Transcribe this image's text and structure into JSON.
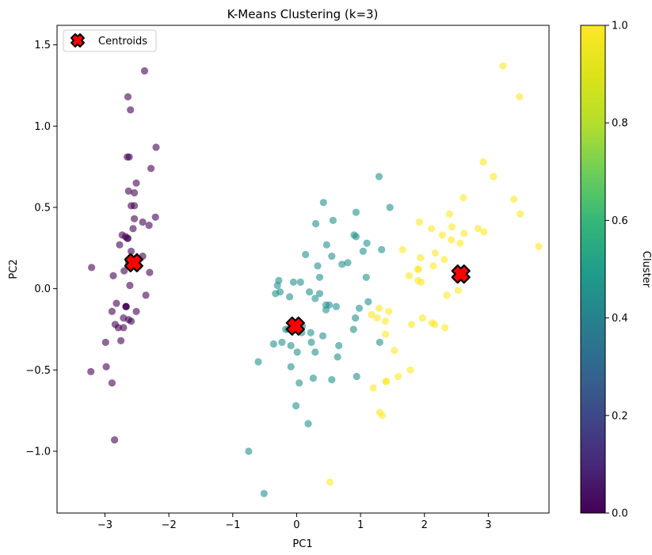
{
  "chart_data": {
    "type": "scatter",
    "title": "K-Means Clustering (k=3)",
    "xlabel": "PC1",
    "ylabel": "PC2",
    "xlim": [
      -3.75,
      3.95
    ],
    "ylim": [
      -1.38,
      1.62
    ],
    "xticks": [
      -3,
      -2,
      -1,
      0,
      1,
      2,
      3
    ],
    "yticks": [
      -1.0,
      -0.5,
      0.0,
      0.5,
      1.0,
      1.5
    ],
    "xtick_labels": [
      "−3",
      "−2",
      "−1",
      "0",
      "1",
      "2",
      "3"
    ],
    "ytick_labels": [
      "−1.0",
      "−0.5",
      "0.0",
      "0.5",
      "1.0",
      "1.5"
    ],
    "grid": false,
    "legend": {
      "position": "top-left",
      "entries": [
        "Centroids"
      ]
    },
    "colorbar": {
      "label": "Cluster",
      "range": [
        0.0,
        1.0
      ],
      "ticks": [
        0.0,
        0.2,
        0.4,
        0.6,
        0.8,
        1.0
      ],
      "tick_labels": [
        "0.0",
        "0.2",
        "0.4",
        "0.6",
        "0.8",
        "1.0"
      ],
      "colormap": "viridis"
    },
    "series": [
      {
        "cluster": 0,
        "color": "#440154",
        "points": [
          [
            -2.68,
            0.32
          ],
          [
            -2.71,
            -0.18
          ],
          [
            -2.89,
            -0.14
          ],
          [
            -2.75,
            -0.32
          ],
          [
            -2.73,
            0.33
          ],
          [
            -2.28,
            0.74
          ],
          [
            -2.82,
            -0.09
          ],
          [
            -2.63,
            0.16
          ],
          [
            -2.89,
            -0.58
          ],
          [
            -2.67,
            -0.11
          ],
          [
            -2.51,
            0.65
          ],
          [
            -2.61,
            0.02
          ],
          [
            -2.79,
            -0.24
          ],
          [
            -3.22,
            -0.51
          ],
          [
            -2.64,
            1.18
          ],
          [
            -2.38,
            1.34
          ],
          [
            -2.62,
            0.81
          ],
          [
            -2.65,
            0.31
          ],
          [
            -2.2,
            0.87
          ],
          [
            -2.59,
            0.51
          ],
          [
            -2.31,
            0.39
          ],
          [
            -2.54,
            0.43
          ],
          [
            -3.21,
            0.13
          ],
          [
            -2.3,
            0.1
          ],
          [
            -2.36,
            -0.04
          ],
          [
            -2.51,
            -0.14
          ],
          [
            -2.47,
            0.14
          ],
          [
            -2.56,
            0.37
          ],
          [
            -2.64,
            0.31
          ],
          [
            -2.63,
            -0.19
          ],
          [
            -2.59,
            -0.2
          ],
          [
            -2.41,
            0.41
          ],
          [
            -2.65,
            0.81
          ],
          [
            -2.6,
            1.1
          ],
          [
            -2.67,
            -0.11
          ],
          [
            -2.87,
            0.08
          ],
          [
            -2.63,
            0.6
          ],
          [
            -2.67,
            -0.11
          ],
          [
            -2.98,
            -0.48
          ],
          [
            -2.59,
            0.23
          ],
          [
            -2.77,
            0.27
          ],
          [
            -2.85,
            -0.93
          ],
          [
            -2.99,
            -0.33
          ],
          [
            -2.41,
            0.2
          ],
          [
            -2.21,
            0.44
          ],
          [
            -2.71,
            -0.24
          ],
          [
            -2.54,
            0.51
          ],
          [
            -2.84,
            -0.22
          ],
          [
            -2.54,
            0.59
          ],
          [
            -2.7,
            0.11
          ]
        ]
      },
      {
        "cluster": 1,
        "color": "#21918c",
        "points": [
          [
            1.29,
            0.69
          ],
          [
            0.93,
            0.32
          ],
          [
            1.46,
            0.5
          ],
          [
            0.18,
            -0.83
          ],
          [
            1.09,
            0.07
          ],
          [
            0.64,
            -0.42
          ],
          [
            1.1,
            0.28
          ],
          [
            -0.75,
            -1.0
          ],
          [
            1.04,
            0.23
          ],
          [
            -0.01,
            -0.72
          ],
          [
            -0.51,
            -1.26
          ],
          [
            0.51,
            -0.1
          ],
          [
            0.26,
            -0.55
          ],
          [
            0.98,
            -0.12
          ],
          [
            -0.17,
            -0.25
          ],
          [
            0.93,
            0.47
          ],
          [
            0.66,
            -0.35
          ],
          [
            0.23,
            -0.33
          ],
          [
            0.94,
            -0.54
          ],
          [
            0.04,
            -0.58
          ],
          [
            1.12,
            -0.08
          ],
          [
            0.36,
            0.07
          ],
          [
            1.3,
            -0.33
          ],
          [
            0.92,
            -0.18
          ],
          [
            0.71,
            0.15
          ],
          [
            0.9,
            0.33
          ],
          [
            1.33,
            0.24
          ],
          [
            0.09,
            -0.23
          ],
          [
            -0.36,
            -0.34
          ],
          [
            -0.23,
            -0.33
          ],
          [
            0.2,
            -0.02
          ],
          [
            0.62,
            -0.11
          ],
          [
            0.89,
            -0.25
          ],
          [
            0.46,
            -0.1
          ],
          [
            -0.09,
            -0.48
          ],
          [
            0.47,
            0.27
          ],
          [
            0.8,
            0.16
          ],
          [
            0.29,
            -0.06
          ],
          [
            0.55,
            -0.56
          ],
          [
            -0.6,
            -0.45
          ],
          [
            -0.13,
            -0.25
          ],
          [
            0.36,
            -0.03
          ],
          [
            0.08,
            -0.27
          ],
          [
            0.01,
            -0.39
          ],
          [
            0.33,
            0.14
          ],
          [
            0.55,
            0.2
          ],
          [
            -0.11,
            -0.05
          ],
          [
            0.01,
            -0.24
          ],
          [
            0.29,
            -0.39
          ],
          [
            0.41,
            -0.29
          ],
          [
            -0.05,
            0.04
          ],
          [
            -0.26,
            -0.02
          ],
          [
            -0.3,
            0.02
          ],
          [
            -0.28,
            0.05
          ],
          [
            0.06,
            0.04
          ],
          [
            0.22,
            -0.27
          ],
          [
            0.14,
            0.21
          ],
          [
            0.46,
            -0.13
          ],
          [
            -0.09,
            -0.35
          ],
          [
            0.3,
            0.4
          ],
          [
            -0.33,
            -0.03
          ],
          [
            0.42,
            0.53
          ],
          [
            0.57,
            0.42
          ]
        ]
      },
      {
        "cluster": 2,
        "color": "#fde725",
        "points": [
          [
            2.53,
            -0.01
          ],
          [
            1.4,
            -0.57
          ],
          [
            2.62,
            0.34
          ],
          [
            1.97,
            -0.18
          ],
          [
            2.35,
            -0.04
          ],
          [
            3.4,
            0.55
          ],
          [
            0.52,
            -1.19
          ],
          [
            2.93,
            0.35
          ],
          [
            2.32,
            -0.24
          ],
          [
            2.92,
            0.78
          ],
          [
            1.66,
            0.24
          ],
          [
            1.8,
            -0.22
          ],
          [
            2.17,
            0.22
          ],
          [
            1.34,
            -0.78
          ],
          [
            1.59,
            -0.54
          ],
          [
            1.9,
            0.12
          ],
          [
            1.95,
            0.04
          ],
          [
            3.49,
            1.18
          ],
          [
            3.79,
            0.26
          ],
          [
            1.3,
            -0.76
          ],
          [
            2.43,
            0.38
          ],
          [
            1.2,
            -0.61
          ],
          [
            3.5,
            0.46
          ],
          [
            1.39,
            -0.2
          ],
          [
            2.28,
            0.33
          ],
          [
            2.61,
            0.56
          ],
          [
            1.26,
            -0.18
          ],
          [
            1.29,
            -0.12
          ],
          [
            2.12,
            -0.21
          ],
          [
            2.39,
            0.46
          ],
          [
            2.84,
            0.37
          ],
          [
            3.23,
            1.37
          ],
          [
            2.16,
            -0.22
          ],
          [
            1.44,
            -0.14
          ],
          [
            1.78,
            -0.5
          ],
          [
            3.08,
            0.69
          ],
          [
            2.14,
            0.14
          ],
          [
            1.9,
            0.05
          ],
          [
            1.17,
            -0.16
          ],
          [
            2.11,
            0.37
          ],
          [
            2.31,
            0.18
          ],
          [
            1.92,
            0.41
          ],
          [
            1.4,
            -0.57
          ],
          [
            2.56,
            0.28
          ],
          [
            2.42,
            0.3
          ],
          [
            1.94,
            0.19
          ],
          [
            1.53,
            -0.38
          ],
          [
            1.76,
            0.08
          ],
          [
            1.9,
            0.12
          ],
          [
            1.39,
            -0.28
          ]
        ]
      }
    ],
    "centroids": [
      [
        -2.55,
        0.16
      ],
      [
        -0.02,
        -0.23
      ],
      [
        2.57,
        0.09
      ]
    ]
  }
}
